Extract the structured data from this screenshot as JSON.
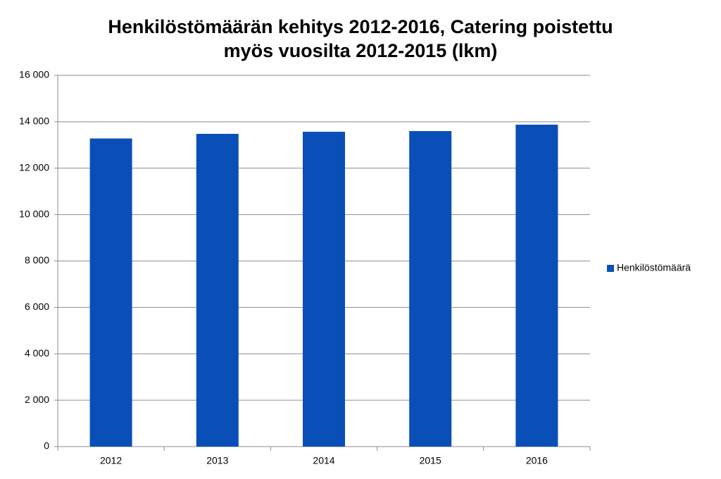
{
  "chart_data": {
    "type": "bar",
    "title": [
      "Henkilöstömäärän kehitys 2012-2016, Catering poistettu",
      "myös vuosilta 2012-2015 (lkm)"
    ],
    "categories": [
      "2012",
      "2013",
      "2014",
      "2015",
      "2016"
    ],
    "series": [
      {
        "name": "Henkilöstömäärä",
        "color": "#0a4fb8",
        "values": [
          13280,
          13480,
          13570,
          13600,
          13875
        ]
      }
    ],
    "ylim": [
      0,
      16000
    ],
    "yticks": [
      0,
      {
        "value": 2000,
        "label": "2 000"
      },
      {
        "value": 4000,
        "label": "4 000"
      },
      {
        "value": 6000,
        "label": "6 000"
      },
      {
        "value": 8000,
        "label": "8 000"
      },
      {
        "value": 10000,
        "label": "10 000"
      },
      {
        "value": 12000,
        "label": "12 000"
      },
      {
        "value": 14000,
        "label": "14 000"
      },
      {
        "value": 16000,
        "label": "16 000"
      }
    ],
    "grid": true,
    "legend": "right"
  }
}
